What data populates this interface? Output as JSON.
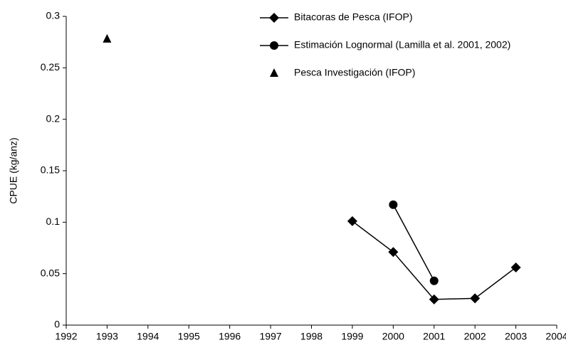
{
  "chart_data": {
    "type": "line",
    "y_label": "CPUE (kg/anz)",
    "xlim": [
      1992,
      2004
    ],
    "xticks": [
      1992,
      1993,
      1994,
      1995,
      1996,
      1997,
      1998,
      1999,
      2000,
      2001,
      2002,
      2003,
      2004
    ],
    "ylim": [
      0,
      0.3
    ],
    "yticks": [
      0,
      0.05,
      0.1,
      0.15,
      0.2,
      0.25,
      0.3
    ],
    "grid": false,
    "legend": "top-right",
    "series": [
      {
        "name": "Bitacoras de Pesca (IFOP)",
        "color": "#000000",
        "marker": "diamond",
        "line": true,
        "x": [
          1999,
          2000,
          2001,
          2002,
          2003
        ],
        "values": [
          0.101,
          0.071,
          0.025,
          0.026,
          0.056
        ]
      },
      {
        "name": "Estimación Lognormal (Lamilla et al. 2001, 2002)",
        "color": "#000000",
        "marker": "circle",
        "line": true,
        "x": [
          2000,
          2001
        ],
        "values": [
          0.117,
          0.043
        ]
      },
      {
        "name": "Pesca Investigación (IFOP)",
        "color": "#000000",
        "marker": "triangle",
        "line": false,
        "x": [
          1993
        ],
        "values": [
          0.278
        ]
      }
    ]
  }
}
